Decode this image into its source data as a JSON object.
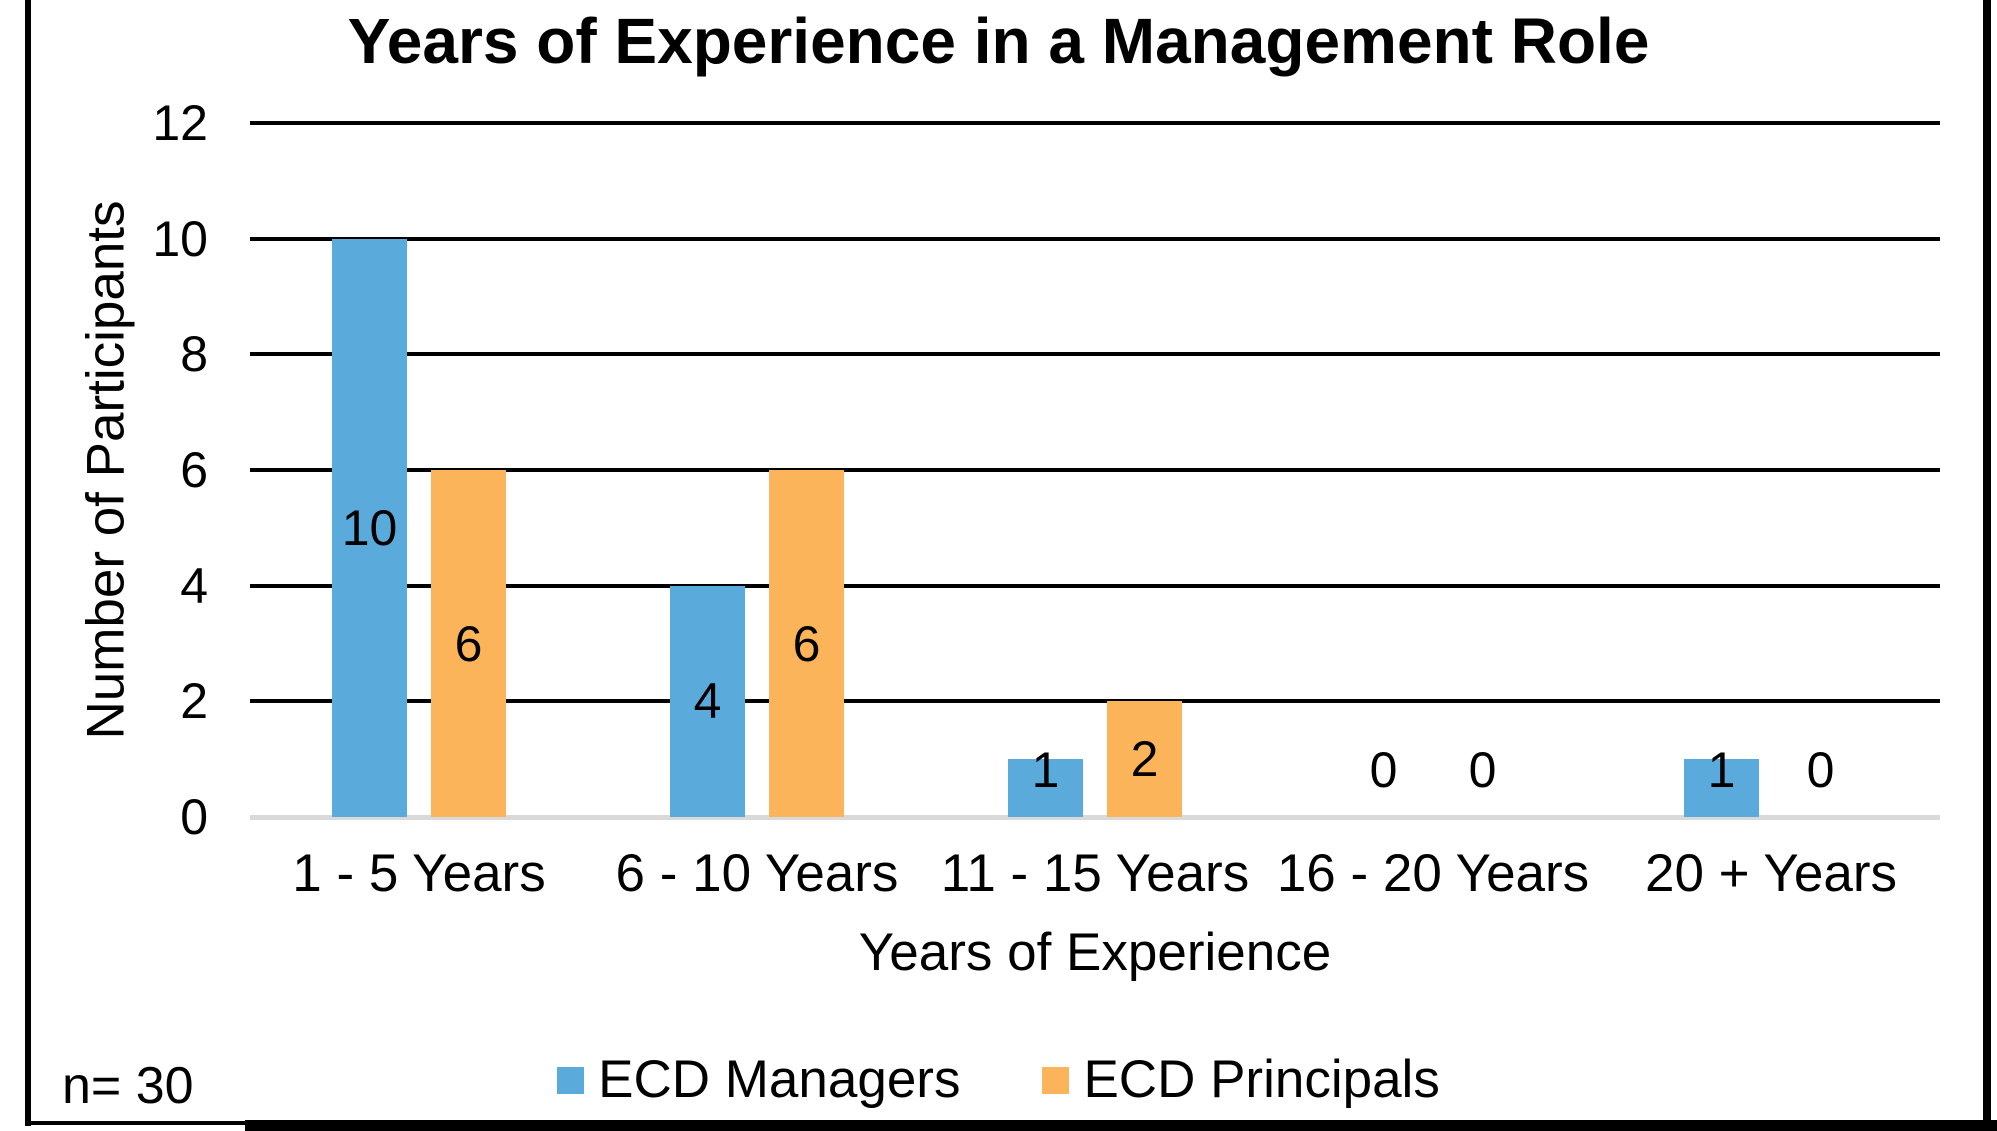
{
  "chart_data": {
    "type": "bar",
    "title": "Years of Experience in a Management Role",
    "xlabel": "Years of Experience",
    "ylabel": "Number of Participants",
    "categories": [
      "1 - 5 Years",
      "6 - 10 Years",
      "11 - 15 Years",
      "16 - 20 Years",
      "20 + Years"
    ],
    "series": [
      {
        "name": "ECD Managers",
        "color": "#5BAADC",
        "values": [
          10,
          4,
          1,
          0,
          1
        ]
      },
      {
        "name": "ECD Principals",
        "color": "#FBB45A",
        "values": [
          6,
          6,
          2,
          0,
          0
        ]
      }
    ],
    "ylim": [
      0,
      12
    ],
    "yticks": [
      0,
      2,
      4,
      6,
      8,
      10,
      12
    ],
    "grid": "horizontal-black",
    "baseline_color": "#D9D9D9",
    "legend_position": "bottom-center",
    "data_labels": "shown-on-bars"
  },
  "annotation": {
    "sample_size": "n= 30"
  },
  "colors": {
    "background": "#FFFFFF",
    "text": "#000000",
    "gridline": "#000000",
    "baseline": "#D9D9D9",
    "border": "#000000"
  }
}
